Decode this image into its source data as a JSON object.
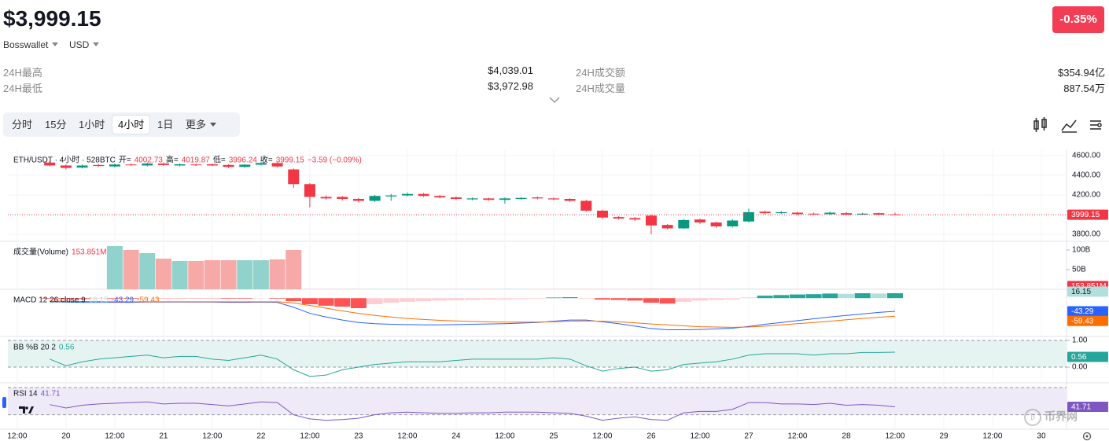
{
  "header": {
    "price": "$3,999.15",
    "wallet": "Bosswallet",
    "currency": "USD",
    "change": "-0.35%"
  },
  "stats": [
    {
      "label": "24H最高",
      "value": "$4,039.01"
    },
    {
      "label": "24H最低",
      "value": "$3,972.98"
    },
    {
      "label": "24H成交额",
      "value": "$354.94亿"
    },
    {
      "label": "24H成交量",
      "value": "887.54万"
    }
  ],
  "tabs": [
    "分时",
    "15分",
    "1小时",
    "4小时",
    "1日",
    "更多"
  ],
  "active_tab": 3,
  "watermark": "币界网",
  "chart_data": [
    {
      "type": "candlestick",
      "title": "ETH/USDT · 4小时 · 528BTC",
      "legend_labels": [
        "开=",
        "高=",
        "低=",
        "收="
      ],
      "change_label": "−3.59 (−0.09%)",
      "up_color": "#089981",
      "down_color": "#f23645",
      "grid": true,
      "x": [
        8,
        12,
        16,
        20,
        24,
        28,
        32,
        36,
        40,
        44,
        48,
        52,
        56,
        60,
        64,
        68,
        72,
        76,
        80,
        84,
        88,
        92,
        96,
        100,
        104,
        108,
        112,
        116,
        120,
        124,
        128,
        132,
        136,
        140,
        144,
        148,
        152,
        156,
        160,
        164,
        168,
        172,
        176,
        180,
        184,
        188,
        192,
        196,
        200,
        204,
        208,
        212,
        216
      ],
      "xlim": [
        -2.3,
        258
      ],
      "xticks": [
        {
          "value": 0,
          "label": "12:00"
        },
        {
          "value": 12,
          "label": "20"
        },
        {
          "value": 24,
          "label": "12:00"
        },
        {
          "value": 36,
          "label": "21"
        },
        {
          "value": 48,
          "label": "12:00"
        },
        {
          "value": 60,
          "label": "22"
        },
        {
          "value": 72,
          "label": "12:00"
        },
        {
          "value": 84,
          "label": "23"
        },
        {
          "value": 96,
          "label": "12:00"
        },
        {
          "value": 108,
          "label": "24"
        },
        {
          "value": 120,
          "label": "12:00"
        },
        {
          "value": 132,
          "label": "25"
        },
        {
          "value": 144,
          "label": "12:00"
        },
        {
          "value": 156,
          "label": "26"
        },
        {
          "value": 168,
          "label": "12:00"
        },
        {
          "value": 180,
          "label": "27"
        },
        {
          "value": 192,
          "label": "12:00"
        },
        {
          "value": 204,
          "label": "28"
        },
        {
          "value": 216,
          "label": "12:00"
        },
        {
          "value": 228,
          "label": "29"
        },
        {
          "value": 240,
          "label": "12:00"
        },
        {
          "value": 252,
          "label": "30"
        }
      ],
      "open": [
        4530,
        4500,
        4478,
        4505,
        4490,
        4510,
        4500,
        4520,
        4500,
        4510,
        4512,
        4505,
        4485,
        4508,
        4525,
        4460,
        4310,
        4180,
        4180,
        4160,
        4140,
        4185,
        4195,
        4210,
        4190,
        4175,
        4155,
        4165,
        4150,
        4160,
        4175,
        4165,
        4160,
        4140,
        4040,
        3975,
        3965,
        3990,
        3895,
        3860,
        3950,
        3920,
        3880,
        3930,
        4030,
        4015,
        4020,
        4010,
        4005,
        4015,
        4000,
        4015,
        4002.73
      ],
      "high": [
        4545,
        4510,
        4510,
        4515,
        4520,
        4520,
        4530,
        4530,
        4520,
        4518,
        4520,
        4512,
        4515,
        4535,
        4530,
        4470,
        4320,
        4195,
        4190,
        4170,
        4200,
        4210,
        4225,
        4220,
        4200,
        4185,
        4175,
        4172,
        4175,
        4180,
        4185,
        4175,
        4168,
        4150,
        4050,
        3985,
        3975,
        4000,
        3905,
        3955,
        3960,
        3930,
        3955,
        4060,
        4040,
        4035,
        4030,
        4020,
        4030,
        4025,
        4020,
        4022,
        4019.87
      ],
      "low": [
        4490,
        4460,
        4470,
        4485,
        4480,
        4495,
        4490,
        4495,
        4490,
        4495,
        4492,
        4475,
        4478,
        4500,
        4480,
        4270,
        4075,
        4150,
        4145,
        4125,
        4130,
        4140,
        4185,
        4180,
        4165,
        4150,
        4145,
        4140,
        4110,
        4150,
        4155,
        4145,
        4130,
        4030,
        3955,
        3950,
        3935,
        3800,
        3850,
        3855,
        3905,
        3865,
        3870,
        3920,
        4005,
        4005,
        3995,
        3995,
        3998,
        3992,
        3995,
        3992,
        3996.24
      ],
      "close": [
        4500,
        4475,
        4500,
        4495,
        4510,
        4505,
        4520,
        4505,
        4512,
        4505,
        4500,
        4485,
        4508,
        4525,
        4490,
        4310,
        4180,
        4165,
        4160,
        4140,
        4190,
        4195,
        4210,
        4190,
        4175,
        4160,
        4165,
        4150,
        4165,
        4170,
        4165,
        4155,
        4140,
        4040,
        3970,
        3960,
        3950,
        3890,
        3860,
        3945,
        3920,
        3880,
        3940,
        4025,
        4015,
        4025,
        4005,
        4005,
        4020,
        4000,
        4010,
        4000,
        3999.15
      ],
      "ylim": [
        3728,
        4664
      ],
      "yticks": [
        {
          "value": 4600,
          "label": "4600.00"
        },
        {
          "value": 4400,
          "label": "4400.00"
        },
        {
          "value": 4200,
          "label": "4200.00"
        },
        {
          "value": 3800,
          "label": "3800.00"
        }
      ]
    },
    {
      "type": "bar",
      "title": "成交量(Volume)",
      "up_color": "#92d2cc",
      "down_color": "#f7a9a7",
      "values": [
        0.3,
        0.3,
        0.3,
        0.3,
        110,
        100,
        92,
        78,
        72,
        72,
        74,
        74,
        74,
        74,
        76,
        100,
        0.5,
        0.5,
        0.5,
        0.5,
        0.5,
        0.5,
        0.5,
        0.5,
        0.5,
        0.5,
        0.5,
        0.5,
        0.5,
        0.5,
        0.5,
        0.5,
        0.5,
        0.5,
        0.5,
        0.5,
        0.5,
        0.5,
        0.5,
        0.5,
        0.5,
        0.5,
        0.5,
        0.5,
        0.5,
        0.5,
        0.5,
        0.5,
        0.5,
        0.5,
        0.5,
        0.5,
        0.153851
      ],
      "value_labels": [
        null,
        null,
        null,
        null,
        null,
        null,
        null,
        null,
        null,
        null,
        null,
        null,
        null,
        null,
        null,
        null,
        null,
        null,
        null,
        null,
        null,
        null,
        null,
        null,
        null,
        null,
        null,
        null,
        null,
        null,
        null,
        null,
        null,
        null,
        null,
        null,
        null,
        null,
        null,
        null,
        null,
        null,
        null,
        null,
        null,
        null,
        null,
        null,
        null,
        null,
        null,
        null,
        "153.851M"
      ],
      "ylim": [
        0,
        122
      ],
      "yticks": [
        {
          "value": 100,
          "label": "100B"
        },
        {
          "value": 50,
          "label": "50B"
        }
      ]
    },
    {
      "type": "combo",
      "title": "MACD 12 26 close 9",
      "ylim": [
        -126,
        29
      ],
      "series": [
        {
          "style": "bar",
          "colors": [
            "#26a69a",
            "#b2dfdb",
            "#ff5252",
            "#ffcdd2"
          ],
          "values": [
            -2,
            -3,
            -3,
            -2,
            -2,
            -2,
            -1,
            -1,
            -1,
            -1,
            -1,
            -2,
            -2,
            -1,
            -2,
            -10,
            -20,
            -25,
            -28,
            -33,
            -20,
            -15,
            -12,
            -10,
            -8,
            -7,
            -6,
            -5,
            -4,
            -3,
            -2,
            2,
            3,
            -2,
            -5,
            -6,
            -8,
            -15,
            -18,
            -12,
            -8,
            -6,
            -4,
            2,
            8,
            10,
            12,
            13,
            15,
            14,
            16,
            15,
            16.15
          ]
        },
        {
          "style": "line",
          "color": "#2962ff",
          "values": [
            -12,
            -13,
            -14,
            -14,
            -14,
            -14,
            -13,
            -13,
            -13,
            -13,
            -13,
            -14,
            -14,
            -13,
            -14,
            -30,
            -50,
            -62,
            -72,
            -80,
            -84,
            -86,
            -87,
            -88,
            -88,
            -87,
            -86,
            -85,
            -84,
            -82,
            -80,
            -76,
            -72,
            -72,
            -78,
            -84,
            -92,
            -100,
            -104,
            -104,
            -103,
            -101,
            -99,
            -93,
            -86,
            -80,
            -74,
            -68,
            -62,
            -57,
            -52,
            -47,
            -43.29
          ]
        },
        {
          "style": "line",
          "color": "#ff6d00",
          "values": [
            -10,
            -10,
            -11,
            -11,
            -12,
            -12,
            -12,
            -12,
            -12,
            -12,
            -12,
            -12,
            -12,
            -12,
            -12,
            -16,
            -24,
            -33,
            -42,
            -50,
            -57,
            -62,
            -67,
            -70,
            -73,
            -75,
            -77,
            -78,
            -79,
            -79,
            -79,
            -78,
            -76,
            -75,
            -76,
            -78,
            -81,
            -85,
            -88,
            -91,
            -94,
            -95,
            -96,
            -95,
            -92,
            -88,
            -84,
            -80,
            -76,
            -71,
            -67,
            -63,
            -59.43
          ]
        }
      ]
    },
    {
      "type": "line",
      "title": "BB %B 20 2",
      "ylim": [
        -0.59,
        1.15
      ],
      "band": [
        0,
        1
      ],
      "band_color": "#e6f4f1",
      "yticks": [
        {
          "value": 1,
          "label": "1.00"
        },
        {
          "value": 0,
          "label": "0.00"
        }
      ],
      "series": [
        {
          "color": "#26a69a",
          "values": [
            0.3,
            0.05,
            0.2,
            0.3,
            0.35,
            0.4,
            0.45,
            0.35,
            0.4,
            0.4,
            0.3,
            0.25,
            0.35,
            0.45,
            0.3,
            -0.1,
            -0.35,
            -0.3,
            -0.1,
            0,
            0.1,
            0.15,
            0.2,
            0.2,
            0.2,
            0.25,
            0.3,
            0.3,
            0.3,
            0.3,
            0.3,
            0.35,
            0.3,
            0.05,
            -0.15,
            -0.05,
            0,
            -0.15,
            -0.1,
            0.1,
            0.15,
            0.2,
            0.3,
            0.45,
            0.5,
            0.5,
            0.5,
            0.45,
            0.5,
            0.5,
            0.55,
            0.55,
            0.56
          ]
        }
      ]
    },
    {
      "type": "line",
      "title": "RSI 14",
      "ylim": [
        8.8,
        77
      ],
      "band": [
        30,
        70
      ],
      "band_color": "#efeaf8",
      "series": [
        {
          "color": "#7e57c2",
          "values": [
            45,
            40,
            44,
            46,
            47,
            48,
            49,
            46,
            47,
            47,
            45,
            43,
            46,
            49,
            48,
            30,
            24,
            22,
            23,
            25,
            30,
            33,
            34,
            33,
            32,
            32,
            33,
            33,
            34,
            34,
            34,
            33,
            32,
            28,
            22,
            25,
            27,
            23,
            22,
            33,
            35,
            35,
            38,
            48,
            48,
            46,
            46,
            45,
            47,
            44,
            45,
            44,
            41.71
          ]
        }
      ]
    }
  ]
}
